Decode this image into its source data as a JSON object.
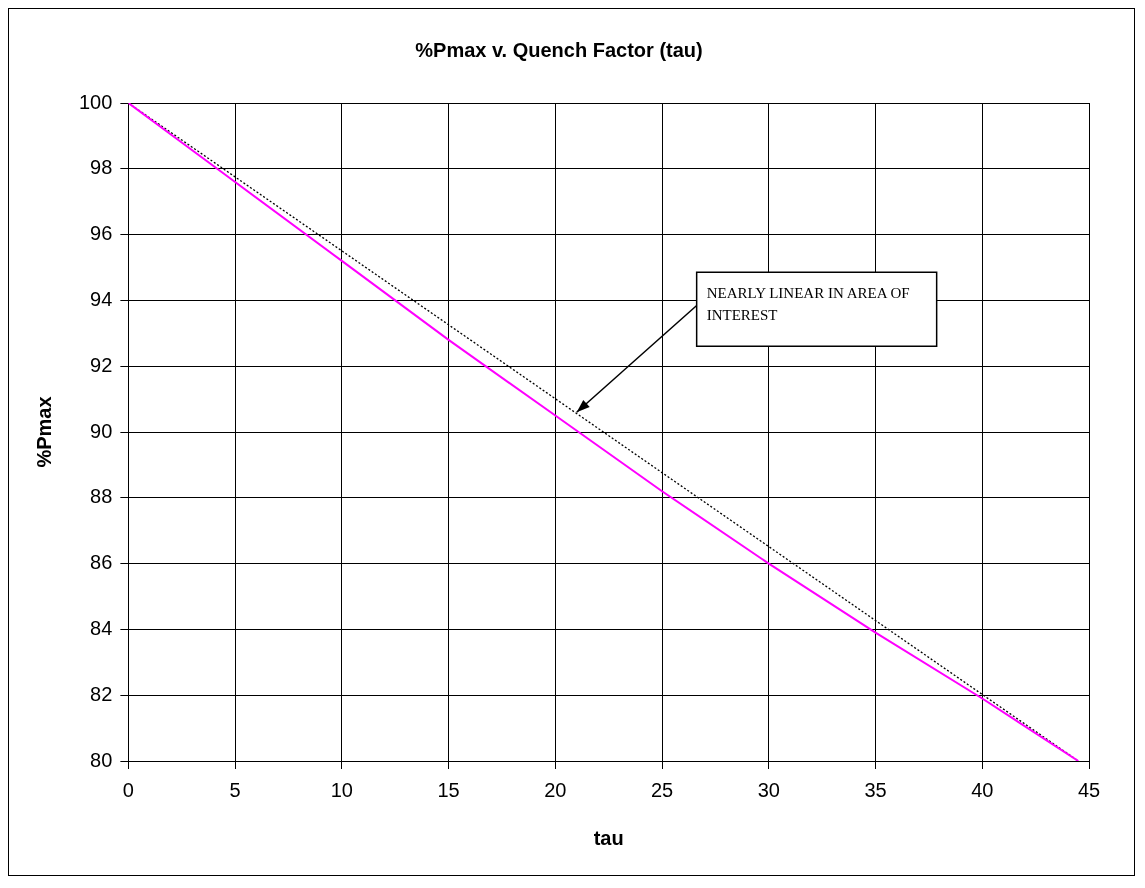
{
  "chart_data": {
    "type": "line",
    "title": "%Pmax v. Quench Factor (tau)",
    "xlabel": "tau",
    "ylabel": "%Pmax",
    "xlim": [
      0,
      45
    ],
    "xticks": [
      0,
      5,
      10,
      15,
      20,
      25,
      30,
      35,
      40,
      45
    ],
    "ylim": [
      80,
      100
    ],
    "yticks": [
      80,
      82,
      84,
      86,
      88,
      90,
      92,
      94,
      96,
      98,
      100
    ],
    "grid": true,
    "legend": false,
    "marker": "none",
    "series": [
      {
        "color": "#ff00ff",
        "x": [
          0,
          5,
          10,
          15,
          20,
          25,
          30,
          35,
          40,
          44.5
        ],
        "values": [
          100,
          97.6,
          95.2,
          92.8,
          90.5,
          88.2,
          86.0,
          83.9,
          81.9,
          80
        ]
      },
      {
        "type": "line",
        "color": "#000000",
        "line_style": "dotted",
        "x": [
          0,
          44.5
        ],
        "values": [
          100,
          80
        ]
      }
    ],
    "annotations": [
      {
        "text": "NEARLY LINEAR IN AREA OF INTEREST",
        "x": 21,
        "y": 90.6
      }
    ]
  }
}
